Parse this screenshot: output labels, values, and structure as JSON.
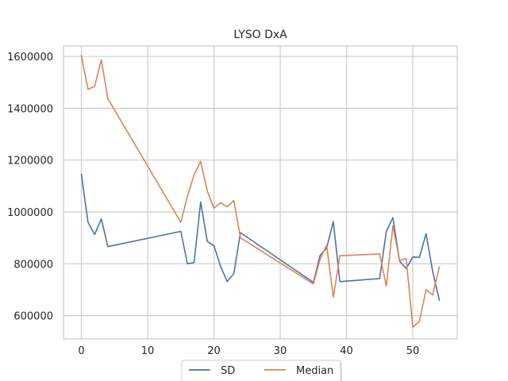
{
  "chart_data": {
    "type": "line",
    "title": "LYSO DxA",
    "xlabel": "",
    "ylabel": "",
    "xlim": [
      -2.7,
      56.7
    ],
    "ylim": [
      510000,
      1640000
    ],
    "xticks": [
      0,
      10,
      20,
      30,
      40,
      50
    ],
    "yticks": [
      600000,
      800000,
      1000000,
      1200000,
      1400000,
      1600000
    ],
    "grid": true,
    "legend": {
      "placement": "bottom-center",
      "columns": 2
    },
    "series": [
      {
        "name": "SD",
        "color": "#4c72b0",
        "x": [
          0,
          1,
          2,
          3,
          4,
          15,
          16,
          17,
          18,
          19,
          20,
          21,
          22,
          23,
          24,
          35,
          36,
          37,
          38,
          39,
          45,
          46,
          47,
          48,
          49,
          50,
          51,
          52,
          53,
          54
        ],
        "y": [
          1145000,
          960000,
          913000,
          973000,
          866000,
          925000,
          800000,
          805000,
          1038000,
          886000,
          870000,
          790000,
          731000,
          762000,
          920000,
          728000,
          832000,
          860000,
          963000,
          731000,
          743000,
          925000,
          978000,
          810000,
          782000,
          826000,
          825000,
          916000,
          770000,
          660000
        ]
      },
      {
        "name": "Median",
        "color": "#dd8452",
        "x": [
          0,
          1,
          2,
          3,
          4,
          15,
          16,
          17,
          18,
          19,
          20,
          21,
          22,
          23,
          24,
          35,
          36,
          37,
          38,
          39,
          45,
          46,
          47,
          48,
          49,
          50,
          51,
          52,
          53,
          54
        ],
        "y": [
          1603000,
          1473000,
          1484000,
          1587000,
          1437000,
          960000,
          1060000,
          1143000,
          1195000,
          1080000,
          1015000,
          1035000,
          1020000,
          1044000,
          900000,
          722000,
          817000,
          871000,
          671000,
          831000,
          838000,
          714000,
          946000,
          813000,
          820000,
          555000,
          578000,
          700000,
          680000,
          788000
        ]
      }
    ]
  }
}
